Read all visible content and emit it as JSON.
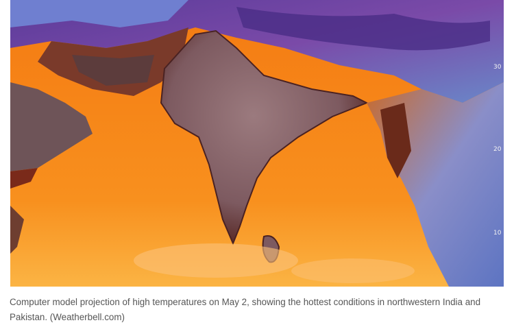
{
  "figure": {
    "latitude_labels": [
      "30 N",
      "20 N",
      "10 N"
    ],
    "caption": "Computer model projection of high temperatures on May 2, showing the hottest conditions in northwestern India and Pakistan. (Weatherbell.com)"
  }
}
